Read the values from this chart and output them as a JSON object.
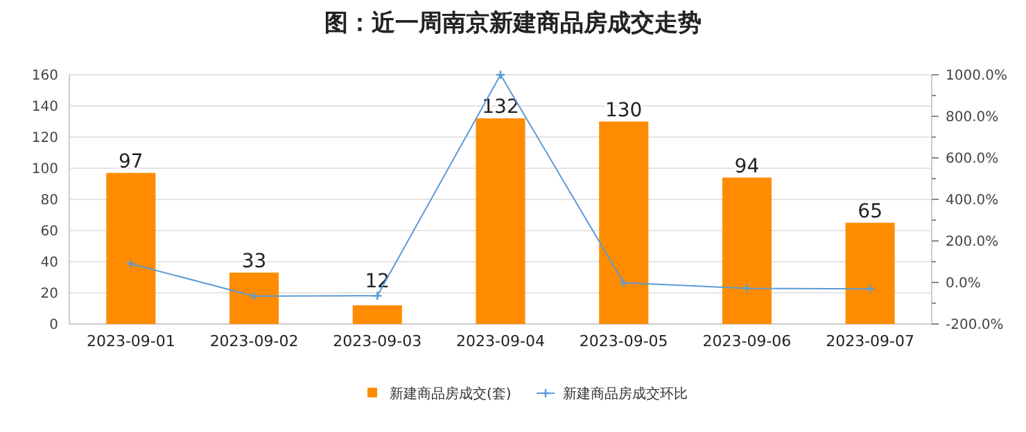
{
  "chart_data": {
    "type": "bar",
    "title": "图：近一周南京新建商品房成交走势",
    "categories": [
      "2023-09-01",
      "2023-09-02",
      "2023-09-03",
      "2023-09-04",
      "2023-09-05",
      "2023-09-06",
      "2023-09-07"
    ],
    "series": [
      {
        "name": "新建商品房成交(套)",
        "color": "#ff8c00",
        "values": [
          97,
          33,
          12,
          132,
          130,
          94,
          65
        ],
        "value_labels": [
          "97",
          "33",
          "12",
          "132",
          "130",
          "94",
          "65"
        ]
      },
      {
        "name": "新建商品房成交环比",
        "type": "line",
        "axis": "y2",
        "color": "#5b9bd5",
        "marker": "cross",
        "values": [
          90,
          -66,
          -64,
          1000,
          -2,
          -28,
          -31
        ]
      }
    ],
    "ylim": [
      0,
      160
    ],
    "yticks": [
      0,
      20,
      40,
      60,
      80,
      100,
      120,
      140,
      160
    ],
    "y2lim": [
      -200,
      1000
    ],
    "y2ticks": [
      {
        "value": -200,
        "label": "-200.0%"
      },
      {
        "value": -100,
        "label": null
      },
      {
        "value": 0,
        "label": "0.0%"
      },
      {
        "value": 100,
        "label": null
      },
      {
        "value": 200,
        "label": "200.0%"
      },
      {
        "value": 300,
        "label": null
      },
      {
        "value": 400,
        "label": "400.0%"
      },
      {
        "value": 500,
        "label": null
      },
      {
        "value": 600,
        "label": "600.0%"
      },
      {
        "value": 700,
        "label": null
      },
      {
        "value": 800,
        "label": "800.0%"
      },
      {
        "value": 900,
        "label": null
      },
      {
        "value": 1000,
        "label": "1000.0%"
      }
    ],
    "grid": "y",
    "legend": "bottom"
  }
}
